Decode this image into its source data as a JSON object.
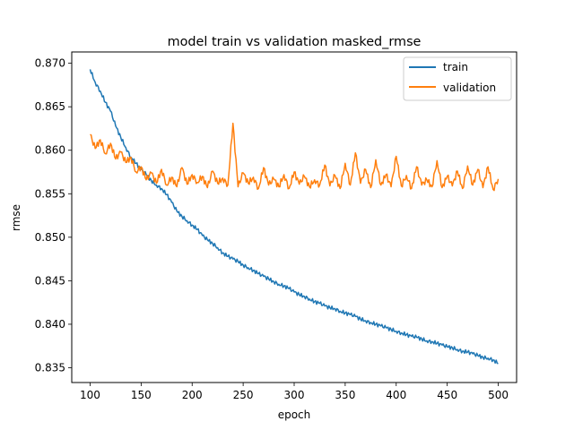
{
  "chart_data": {
    "type": "line",
    "title": "model train vs validation masked_rmse",
    "xlabel": "epoch",
    "ylabel": "rmse",
    "xlim": [
      82,
      518
    ],
    "ylim": [
      0.8333,
      0.8713
    ],
    "xticks": [
      100,
      150,
      200,
      250,
      300,
      350,
      400,
      450,
      500
    ],
    "yticks": [
      0.835,
      0.84,
      0.845,
      0.85,
      0.855,
      0.86,
      0.865,
      0.87
    ],
    "ytick_labels": [
      "0.835",
      "0.840",
      "0.845",
      "0.850",
      "0.855",
      "0.860",
      "0.865",
      "0.870"
    ],
    "grid": false,
    "legend_position": "top-right",
    "series": [
      {
        "name": "train",
        "color": "#1f77b4",
        "x": [
          100,
          105,
          110,
          115,
          120,
          125,
          130,
          135,
          140,
          145,
          150,
          155,
          160,
          165,
          170,
          175,
          180,
          185,
          190,
          195,
          200,
          205,
          210,
          215,
          220,
          225,
          230,
          235,
          240,
          245,
          250,
          255,
          260,
          265,
          270,
          275,
          280,
          285,
          290,
          295,
          300,
          305,
          310,
          315,
          320,
          325,
          330,
          335,
          340,
          345,
          350,
          355,
          360,
          365,
          370,
          375,
          380,
          385,
          390,
          395,
          400,
          405,
          410,
          415,
          420,
          425,
          430,
          435,
          440,
          445,
          450,
          455,
          460,
          465,
          470,
          475,
          480,
          485,
          490,
          495,
          500
        ],
        "y": [
          0.8693,
          0.8678,
          0.8668,
          0.8655,
          0.8645,
          0.8628,
          0.8615,
          0.8603,
          0.8592,
          0.8585,
          0.8578,
          0.8572,
          0.8565,
          0.856,
          0.8556,
          0.8549,
          0.854,
          0.853,
          0.8524,
          0.8519,
          0.8514,
          0.8509,
          0.8502,
          0.8497,
          0.8493,
          0.8488,
          0.8482,
          0.8478,
          0.8475,
          0.8472,
          0.8468,
          0.8465,
          0.8462,
          0.8458,
          0.8455,
          0.8452,
          0.8449,
          0.8446,
          0.8444,
          0.8441,
          0.8437,
          0.8434,
          0.8432,
          0.8429,
          0.8426,
          0.8424,
          0.8421,
          0.8419,
          0.8418,
          0.8415,
          0.8413,
          0.8411,
          0.8409,
          0.8406,
          0.8404,
          0.8402,
          0.84,
          0.8398,
          0.8396,
          0.8394,
          0.8392,
          0.839,
          0.8388,
          0.8386,
          0.8385,
          0.8383,
          0.8381,
          0.838,
          0.8378,
          0.8376,
          0.8374,
          0.8373,
          0.8371,
          0.8369,
          0.8368,
          0.8366,
          0.8364,
          0.8362,
          0.8361,
          0.8359,
          0.8355
        ]
      },
      {
        "name": "validation",
        "color": "#ff7f0e",
        "x": [
          100,
          105,
          110,
          115,
          120,
          125,
          130,
          135,
          140,
          145,
          150,
          155,
          160,
          165,
          170,
          175,
          180,
          185,
          190,
          195,
          200,
          205,
          210,
          215,
          220,
          225,
          230,
          235,
          240,
          245,
          250,
          255,
          260,
          265,
          270,
          275,
          280,
          285,
          290,
          295,
          300,
          305,
          310,
          315,
          320,
          325,
          330,
          335,
          340,
          345,
          350,
          355,
          360,
          365,
          370,
          375,
          380,
          385,
          390,
          395,
          400,
          405,
          410,
          415,
          420,
          425,
          430,
          435,
          440,
          445,
          450,
          455,
          460,
          465,
          470,
          475,
          480,
          485,
          490,
          495,
          500
        ],
        "y": [
          0.8618,
          0.8602,
          0.8612,
          0.8596,
          0.8608,
          0.859,
          0.8598,
          0.8586,
          0.8592,
          0.8575,
          0.8581,
          0.8566,
          0.8574,
          0.8562,
          0.8578,
          0.856,
          0.8569,
          0.8558,
          0.858,
          0.8561,
          0.8572,
          0.8563,
          0.857,
          0.8557,
          0.8576,
          0.8562,
          0.8568,
          0.856,
          0.8631,
          0.8558,
          0.8574,
          0.8562,
          0.8569,
          0.8556,
          0.858,
          0.856,
          0.8567,
          0.8558,
          0.8572,
          0.8556,
          0.8575,
          0.8561,
          0.857,
          0.8558,
          0.8566,
          0.856,
          0.8583,
          0.8559,
          0.8571,
          0.8556,
          0.8585,
          0.856,
          0.8597,
          0.8562,
          0.8578,
          0.8557,
          0.8589,
          0.856,
          0.8572,
          0.8558,
          0.8593,
          0.8559,
          0.8571,
          0.8556,
          0.8581,
          0.856,
          0.8566,
          0.8558,
          0.8588,
          0.8557,
          0.857,
          0.8559,
          0.8576,
          0.8556,
          0.8582,
          0.856,
          0.8578,
          0.8557,
          0.8581,
          0.8555,
          0.8567
        ]
      }
    ]
  }
}
